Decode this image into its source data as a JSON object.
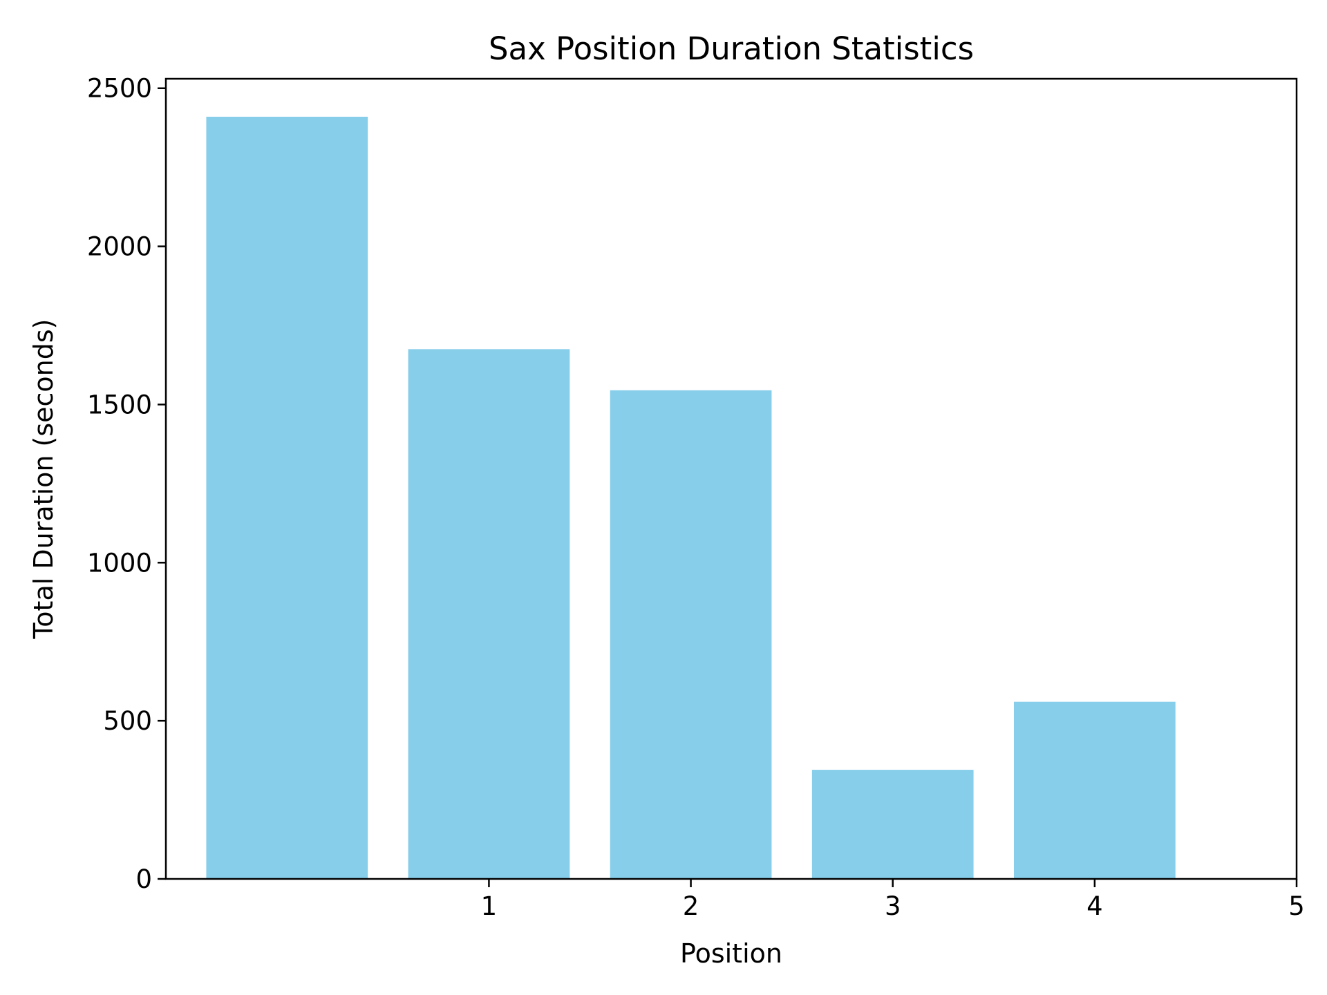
{
  "chart_data": {
    "type": "bar",
    "title": "Sax Position Duration Statistics",
    "xlabel": "Position",
    "ylabel": "Total Duration (seconds)",
    "x": [
      0,
      1,
      2,
      3,
      4
    ],
    "values": [
      2410,
      1675,
      1545,
      345,
      560
    ],
    "bar_width": 0.8,
    "xlim": [
      -0.6,
      5
    ],
    "ylim": [
      0,
      2530
    ],
    "xticks": [
      1,
      2,
      3,
      4,
      5
    ],
    "yticks": [
      0,
      500,
      1000,
      1500,
      2000,
      2500
    ],
    "grid": false,
    "legend": "none",
    "bar_color": "#87CEEB"
  }
}
